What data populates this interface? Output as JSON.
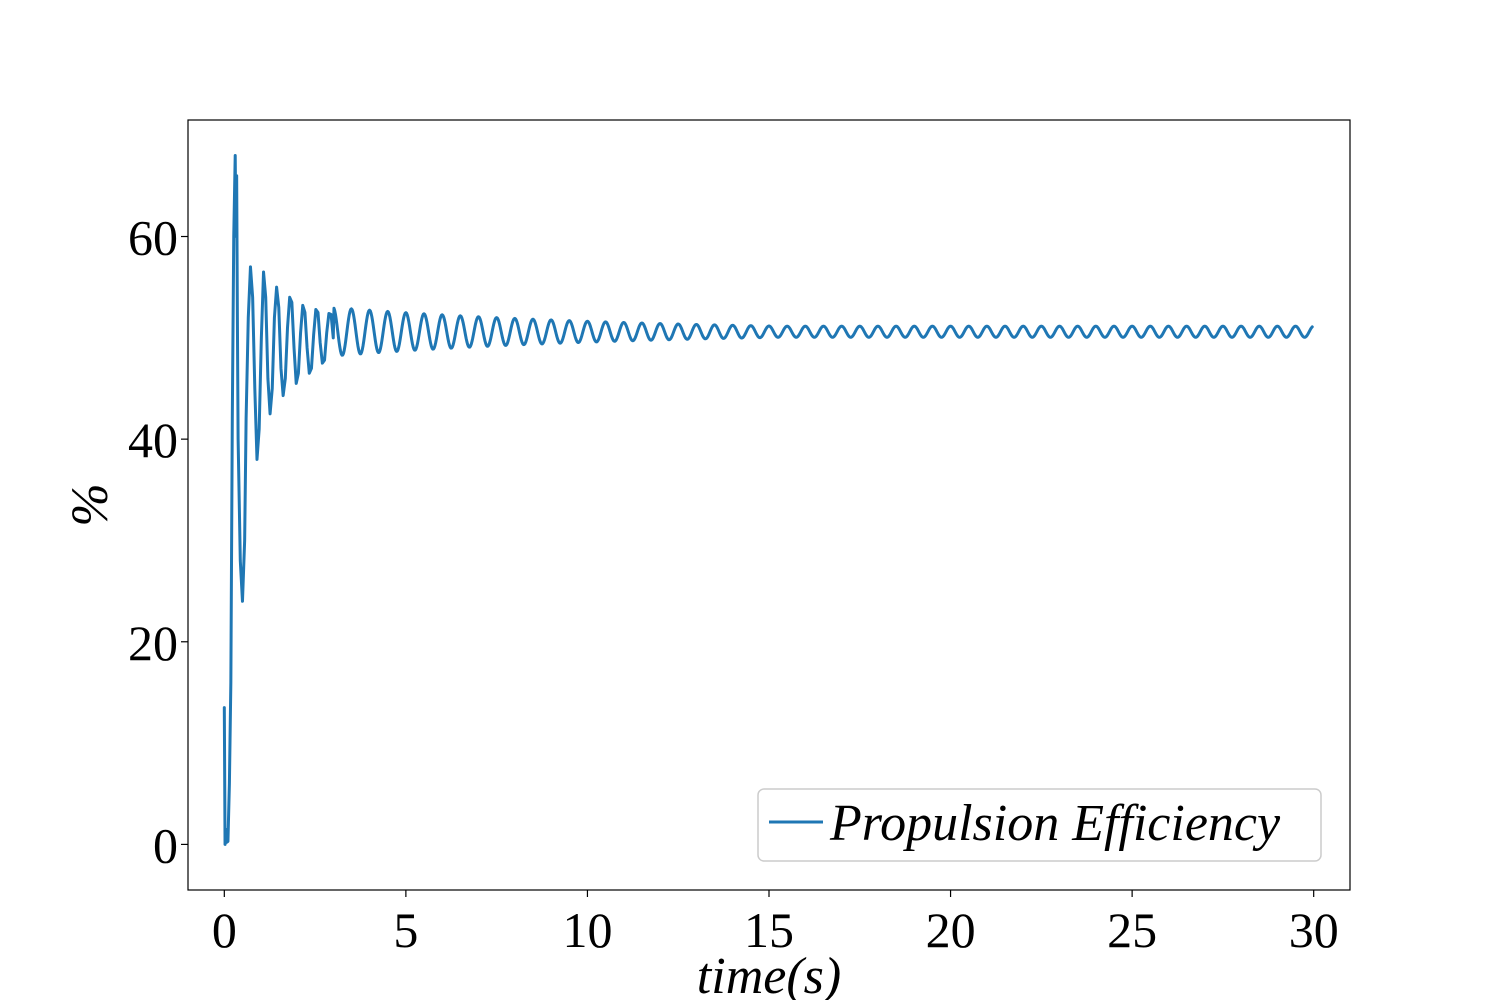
{
  "chart_data": {
    "type": "line",
    "title": "",
    "xlabel": "time(s)",
    "ylabel": "%",
    "xlim": [
      -1,
      31
    ],
    "ylim": [
      -4.5,
      71.5
    ],
    "xticks": [
      0,
      5,
      10,
      15,
      20,
      25,
      30
    ],
    "yticks": [
      0,
      20,
      40,
      60
    ],
    "grid": false,
    "legend_position": "lower-right",
    "series": [
      {
        "name": "Propulsion Efficiency",
        "color": "#1f77b4",
        "x": [
          0.0,
          0.02,
          0.04,
          0.06,
          0.1,
          0.14,
          0.18,
          0.22,
          0.26,
          0.3,
          0.32,
          0.34,
          0.36,
          0.38,
          0.44,
          0.5,
          0.56,
          0.6,
          0.66,
          0.72,
          0.78,
          0.84,
          0.9,
          0.96,
          1.02,
          1.08,
          1.14,
          1.2,
          1.26,
          1.32,
          1.38,
          1.44,
          1.5,
          1.56,
          1.62,
          1.68,
          1.74,
          1.8,
          1.86,
          1.92,
          1.98,
          2.04,
          2.1,
          2.16,
          2.22,
          2.28,
          2.34,
          2.4,
          2.46,
          2.52,
          2.58,
          2.64,
          2.7,
          2.76,
          2.82,
          2.88,
          2.94,
          3.0
        ],
        "y": [
          13.5,
          0.0,
          1.5,
          0.2,
          0.3,
          6.0,
          16.0,
          42.0,
          60.0,
          68.0,
          60.0,
          66.0,
          52.0,
          40.0,
          28.0,
          24.0,
          30.0,
          42.0,
          52.0,
          57.0,
          54.0,
          45.0,
          38.0,
          41.0,
          50.0,
          56.5,
          54.0,
          46.0,
          42.5,
          45.0,
          52.0,
          55.0,
          53.0,
          47.0,
          44.3,
          46.0,
          51.0,
          54.0,
          53.5,
          49.0,
          45.5,
          46.5,
          50.5,
          53.2,
          52.5,
          49.0,
          46.5,
          47.0,
          50.3,
          52.8,
          52.5,
          49.5,
          47.5,
          47.8,
          50.5,
          52.4,
          52.3,
          50.0
        ]
      }
    ],
    "tail": {
      "from_x": 3.0,
      "to_x": 29.95,
      "period": 0.5,
      "center": 50.6,
      "amplitude_start": 2.4,
      "amplitude_end": 0.55
    }
  }
}
